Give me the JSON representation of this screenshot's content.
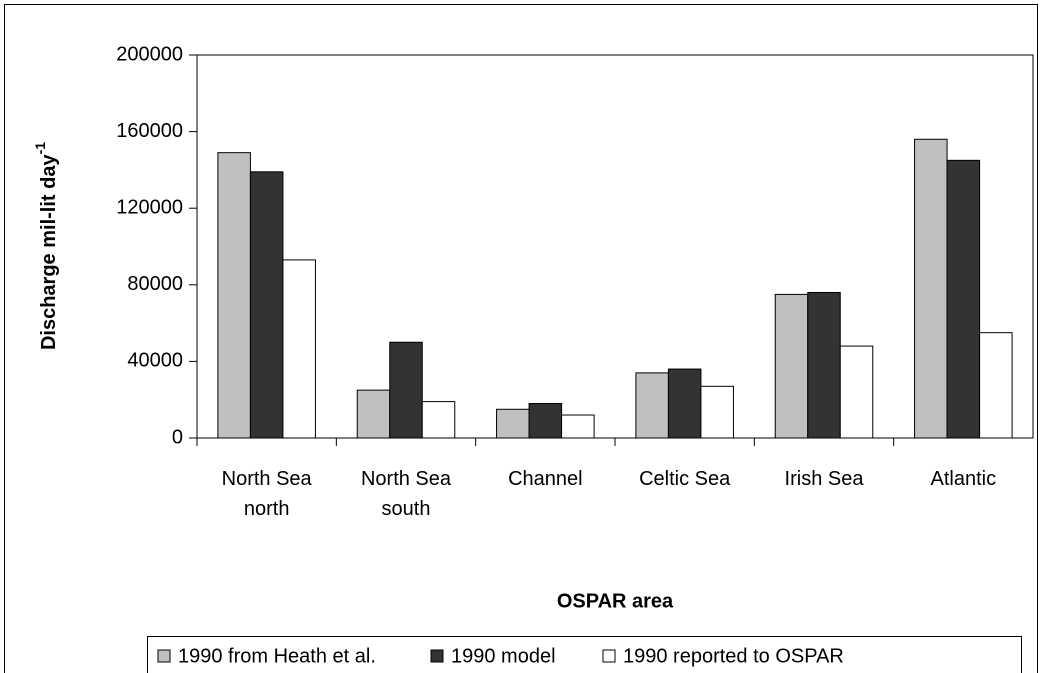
{
  "chart_data": {
    "type": "bar",
    "y_label": "Discharge mil-lit day",
    "y_label_superscript": "-1",
    "x_label": "OSPAR area",
    "categories": [
      [
        "North Sea",
        "north"
      ],
      [
        "North Sea",
        "south"
      ],
      [
        "Channel"
      ],
      [
        "Celtic Sea"
      ],
      [
        "Irish Sea"
      ],
      [
        "Atlantic"
      ]
    ],
    "series": [
      {
        "name": "1990 from Heath et al.",
        "color": "#c0c0c0",
        "values": [
          149000,
          25000,
          15000,
          34000,
          75000,
          156000
        ]
      },
      {
        "name": "1990 model",
        "color": "#333333",
        "values": [
          139000,
          50000,
          18000,
          36000,
          76000,
          145000
        ]
      },
      {
        "name": "1990 reported to OSPAR",
        "color": "#ffffff",
        "values": [
          93000,
          19000,
          12000,
          27000,
          48000,
          55000
        ]
      }
    ],
    "ylim": [
      0,
      200000
    ],
    "yticks": [
      0,
      40000,
      80000,
      120000,
      160000,
      200000
    ],
    "legend": "bottom",
    "grid": false
  }
}
